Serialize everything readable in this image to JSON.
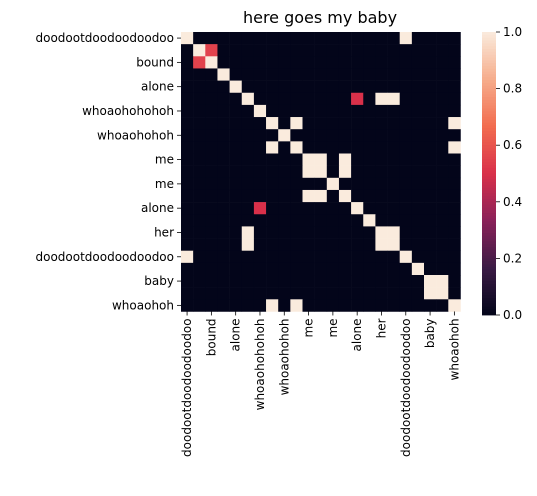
{
  "chart_data": {
    "type": "heatmap",
    "title": "here goes my baby",
    "xlabel": "",
    "ylabel": "",
    "row_labels": [
      "doodootdoodoodoodoo",
      "bound",
      "alone",
      "whoaohohohoh",
      "whoaohohoh",
      "me",
      "me",
      "alone",
      "her",
      "doodootdoodoodoodoo",
      "baby",
      "whoaohoh"
    ],
    "col_labels": [
      "doodootdoodoodoodoo",
      "bound",
      "alone",
      "whoaohohohoh",
      "whoaohohoh",
      "me",
      "me",
      "alone",
      "her",
      "doodootdoodoodoodoo",
      "baby",
      "whoaohoh"
    ],
    "n_cells": 23,
    "cells": [
      [
        1,
        0,
        0,
        0,
        0,
        0,
        0,
        0,
        0,
        0,
        0,
        0,
        0,
        0,
        0,
        0,
        0,
        0,
        1,
        0,
        0,
        0,
        0
      ],
      [
        0,
        1,
        0.55,
        0,
        0,
        0,
        0,
        0,
        0,
        0,
        0,
        0,
        0,
        0,
        0,
        0,
        0,
        0,
        0,
        0,
        0,
        0,
        0
      ],
      [
        0,
        0.55,
        1,
        0,
        0,
        0,
        0,
        0,
        0,
        0,
        0,
        0,
        0,
        0,
        0,
        0,
        0,
        0,
        0,
        0,
        0,
        0,
        0
      ],
      [
        0,
        0,
        0,
        1,
        0,
        0,
        0,
        0,
        0,
        0,
        0,
        0,
        0,
        0,
        0,
        0,
        0,
        0,
        0,
        0,
        0,
        0,
        0
      ],
      [
        0,
        0,
        0,
        0,
        1,
        0,
        0,
        0,
        0,
        0,
        0,
        0,
        0,
        0,
        0,
        0,
        0,
        0,
        0,
        0,
        0,
        0,
        0
      ],
      [
        0,
        0,
        0,
        0,
        0,
        1,
        0,
        0,
        0,
        0,
        0,
        0,
        0,
        0,
        0.5,
        0,
        1,
        1,
        0,
        0,
        0,
        0,
        0
      ],
      [
        0,
        0,
        0,
        0,
        0,
        0,
        1,
        0,
        0,
        0,
        0,
        0,
        0,
        0,
        0,
        0,
        0,
        0,
        0,
        0,
        0,
        0,
        0
      ],
      [
        0,
        0,
        0,
        0,
        0,
        0,
        0,
        1,
        0,
        1,
        0,
        0,
        0,
        0,
        0,
        0,
        0,
        0,
        0,
        0,
        0,
        0,
        1
      ],
      [
        0,
        0,
        0,
        0,
        0,
        0,
        0,
        0,
        1,
        0,
        0,
        0,
        0,
        0,
        0,
        0,
        0,
        0,
        0,
        0,
        0,
        0,
        0
      ],
      [
        0,
        0,
        0,
        0,
        0,
        0,
        0,
        1,
        0,
        1,
        0,
        0,
        0,
        0,
        0,
        0,
        0,
        0,
        0,
        0,
        0,
        0,
        1
      ],
      [
        0,
        0,
        0,
        0,
        0,
        0,
        0,
        0,
        0,
        0,
        1,
        1,
        0,
        1,
        0,
        0,
        0,
        0,
        0,
        0,
        0,
        0,
        0
      ],
      [
        0,
        0,
        0,
        0,
        0,
        0,
        0,
        0,
        0,
        0,
        1,
        1,
        0,
        1,
        0,
        0,
        0,
        0,
        0,
        0,
        0,
        0,
        0
      ],
      [
        0,
        0,
        0,
        0,
        0,
        0,
        0,
        0,
        0,
        0,
        0,
        0,
        1,
        0,
        0,
        0,
        0,
        0,
        0,
        0,
        0,
        0,
        0
      ],
      [
        0,
        0,
        0,
        0,
        0,
        0,
        0,
        0,
        0,
        0,
        1,
        1,
        0,
        1,
        0,
        0,
        0,
        0,
        0,
        0,
        0,
        0,
        0
      ],
      [
        0,
        0,
        0,
        0,
        0,
        0,
        0.5,
        0,
        0,
        0,
        0,
        0,
        0,
        0,
        1,
        0,
        0,
        0,
        0,
        0,
        0,
        0,
        0
      ],
      [
        0,
        0,
        0,
        0,
        0,
        0,
        0,
        0,
        0,
        0,
        0,
        0,
        0,
        0,
        0,
        1,
        0,
        0,
        0,
        0,
        0,
        0,
        0
      ],
      [
        0,
        0,
        0,
        0,
        0,
        1,
        0,
        0,
        0,
        0,
        0,
        0,
        0,
        0,
        0,
        0,
        1,
        1,
        0,
        0,
        0,
        0,
        0
      ],
      [
        0,
        0,
        0,
        0,
        0,
        1,
        0,
        0,
        0,
        0,
        0,
        0,
        0,
        0,
        0,
        0,
        1,
        1,
        0,
        0,
        0,
        0,
        0
      ],
      [
        1,
        0,
        0,
        0,
        0,
        0,
        0,
        0,
        0,
        0,
        0,
        0,
        0,
        0,
        0,
        0,
        0,
        0,
        1,
        0,
        0,
        0,
        0
      ],
      [
        0,
        0,
        0,
        0,
        0,
        0,
        0,
        0,
        0,
        0,
        0,
        0,
        0,
        0,
        0,
        0,
        0,
        0,
        0,
        1,
        0,
        0,
        0
      ],
      [
        0,
        0,
        0,
        0,
        0,
        0,
        0,
        0,
        0,
        0,
        0,
        0,
        0,
        0,
        0,
        0,
        0,
        0,
        0,
        0,
        1,
        1,
        0
      ],
      [
        0,
        0,
        0,
        0,
        0,
        0,
        0,
        0,
        0,
        0,
        0,
        0,
        0,
        0,
        0,
        0,
        0,
        0,
        0,
        0,
        1,
        1,
        0
      ],
      [
        0,
        0,
        0,
        0,
        0,
        0,
        0,
        1,
        0,
        1,
        0,
        0,
        0,
        0,
        0,
        0,
        0,
        0,
        0,
        0,
        0,
        0,
        1
      ]
    ],
    "colorbar": {
      "min": 0.0,
      "max": 1.0,
      "ticks": [
        "0.0",
        "0.2",
        "0.4",
        "0.6",
        "0.8",
        "1.0"
      ],
      "colormap": "rocket",
      "colors": [
        "#03051a",
        "#3b1b45",
        "#8a2159",
        "#d9304a",
        "#f26c4f",
        "#f6ad8c",
        "#faebdd"
      ]
    }
  }
}
